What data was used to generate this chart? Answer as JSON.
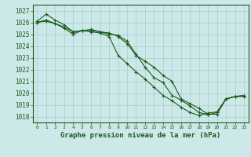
{
  "title": "Graphe pression niveau de la mer (hPa)",
  "bg_color": "#cce8e8",
  "grid_color": "#aacccc",
  "line_color": "#1a5c1a",
  "marker": "+",
  "xlim": [
    -0.5,
    23.5
  ],
  "ylim": [
    1017.5,
    1027.5
  ],
  "yticks": [
    1018,
    1019,
    1020,
    1021,
    1022,
    1023,
    1024,
    1025,
    1026,
    1027
  ],
  "xticks": [
    0,
    1,
    2,
    3,
    4,
    5,
    6,
    7,
    8,
    9,
    10,
    11,
    12,
    13,
    14,
    15,
    16,
    17,
    18,
    19,
    20,
    21,
    22,
    23
  ],
  "series1_x": [
    0,
    1,
    2,
    3,
    4,
    5,
    6,
    7,
    8,
    9,
    10,
    11,
    12,
    13,
    14,
    15,
    16,
    17,
    18,
    19,
    20,
    21,
    22,
    23
  ],
  "series1_y": [
    1026.1,
    1026.7,
    1026.2,
    1025.8,
    1025.2,
    1025.3,
    1025.3,
    1025.2,
    1025.1,
    1024.8,
    1024.2,
    1023.2,
    1022.7,
    1022.2,
    1021.5,
    1021.0,
    1019.5,
    1019.1,
    1018.7,
    1018.2,
    1018.2,
    1019.5,
    1019.7,
    1019.7
  ],
  "series2_x": [
    0,
    1,
    2,
    3,
    4,
    5,
    6,
    7,
    8,
    9,
    10,
    11,
    12,
    13,
    14,
    15,
    16,
    17,
    18,
    19,
    20,
    21,
    22,
    23
  ],
  "series2_y": [
    1026.0,
    1026.2,
    1025.9,
    1025.5,
    1025.0,
    1025.3,
    1025.4,
    1025.2,
    1025.0,
    1024.9,
    1024.4,
    1023.3,
    1022.2,
    1021.3,
    1020.9,
    1019.8,
    1019.4,
    1018.9,
    1018.35,
    1018.15,
    1018.35,
    1019.5,
    1019.7,
    1019.8
  ],
  "series3_x": [
    0,
    1,
    2,
    3,
    4,
    5,
    6,
    7,
    8,
    9,
    10,
    11,
    12,
    13,
    14,
    15,
    16,
    17,
    18,
    19,
    20,
    21,
    22,
    23
  ],
  "series3_y": [
    1026.0,
    1026.1,
    1025.9,
    1025.6,
    1025.2,
    1025.3,
    1025.2,
    1025.1,
    1024.8,
    1023.2,
    1022.5,
    1021.8,
    1021.2,
    1020.5,
    1019.8,
    1019.35,
    1018.8,
    1018.35,
    1018.1,
    1018.3,
    1018.4,
    1019.5,
    1019.7,
    1019.8
  ],
  "ylabel_fontsize": 5.5,
  "xlabel_fontsize": 6.5,
  "tick_fontsize": 4.5,
  "figwidth": 3.2,
  "figheight": 2.0,
  "dpi": 100
}
